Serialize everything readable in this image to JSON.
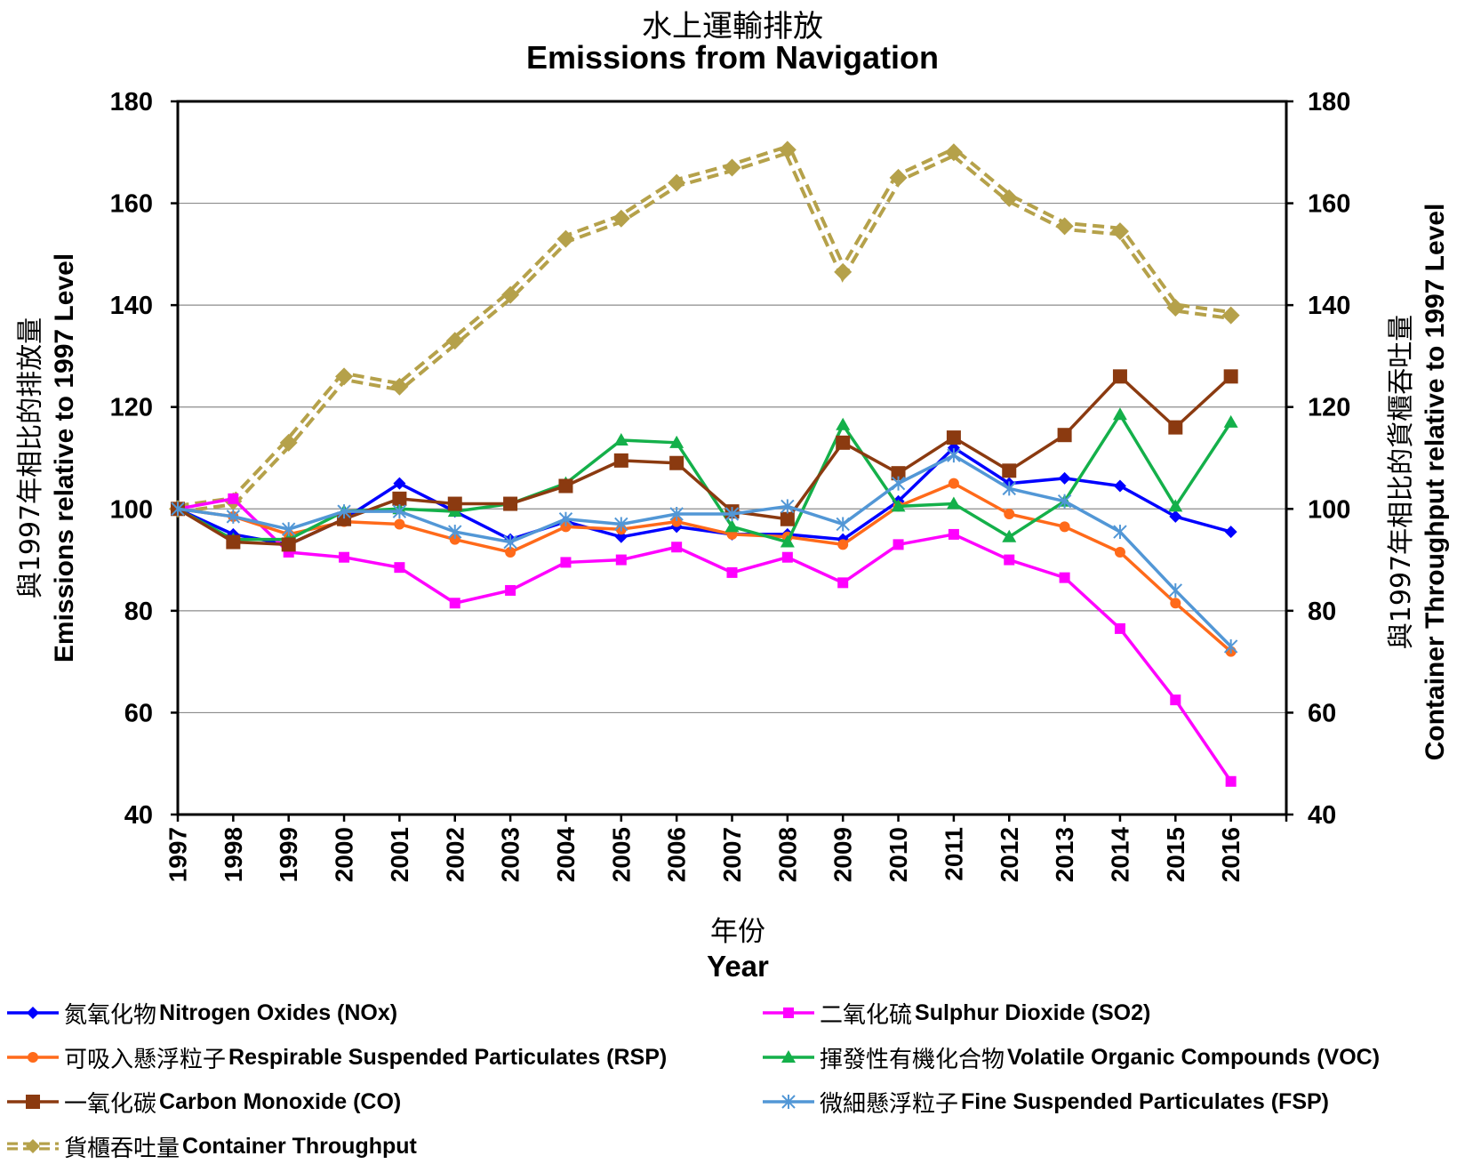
{
  "chart_data": {
    "type": "line",
    "title_zh": "水上運輸排放",
    "title": "Emissions from Navigation",
    "xlabel_zh": "年份",
    "xlabel": "Year",
    "ylabel_left_zh": "與1997年相比的排放量",
    "ylabel_left": "Emissions relative to 1997 Level",
    "ylabel_right_zh": "與1997年相比的貨櫃吞吐量",
    "ylabel_right": "Container Throughput relative to 1997 Level",
    "ylim": [
      40,
      180
    ],
    "yticks": [
      40,
      60,
      80,
      100,
      120,
      140,
      160,
      180
    ],
    "grid": true,
    "legend_position": "bottom",
    "x": [
      "1997",
      "1998",
      "1999",
      "2000",
      "2001",
      "2002",
      "2003",
      "2004",
      "2005",
      "2006",
      "2007",
      "2008",
      "2009",
      "2010",
      "2011",
      "2012",
      "2013",
      "2014",
      "2015",
      "2016"
    ],
    "series": [
      {
        "name_zh": "氮氧化物",
        "name": "Nitrogen Oxides (NOx)",
        "color": "#0000ff",
        "marker": "diamond",
        "dashed": false,
        "values": [
          100,
          95,
          93,
          98,
          105,
          99.5,
          94,
          97.5,
          94.5,
          96.5,
          95,
          95,
          94,
          101.5,
          112,
          105,
          106,
          104.5,
          98.5,
          95.5
        ]
      },
      {
        "name_zh": "二氧化硫",
        "name": "Sulphur Dioxide (SO2)",
        "color": "#ff00ff",
        "marker": "square",
        "dashed": false,
        "values": [
          100,
          102,
          91.5,
          90.5,
          88.5,
          81.5,
          84,
          89.5,
          90,
          92.5,
          87.5,
          90.5,
          85.5,
          93,
          95,
          90,
          86.5,
          76.5,
          62.5,
          46.5
        ]
      },
      {
        "name_zh": "可吸入懸浮粒子",
        "name": "Respirable Suspended Particulates (RSP)",
        "color": "#ff6a1a",
        "marker": "circle",
        "dashed": false,
        "values": [
          100,
          98.5,
          95,
          97.5,
          97,
          94,
          91.5,
          96.5,
          96,
          97.5,
          95,
          94.5,
          93,
          100.5,
          105,
          99,
          96.5,
          91.5,
          81.5,
          72
        ]
      },
      {
        "name_zh": "揮發性有機化合物",
        "name": "Volatile Organic Compounds (VOC)",
        "color": "#14b04a",
        "marker": "triangle",
        "dashed": false,
        "values": [
          100,
          94,
          94,
          99.5,
          100,
          99.5,
          101,
          105,
          113.5,
          113,
          96.5,
          93.5,
          116.5,
          100.5,
          101,
          94.5,
          101.5,
          118.5,
          100.5,
          117
        ]
      },
      {
        "name_zh": "一氧化碳",
        "name": "Carbon Monoxide (CO)",
        "color": "#8b3a10",
        "marker": "bigsquare",
        "dashed": false,
        "values": [
          100,
          93.5,
          93,
          98,
          102,
          101,
          101,
          104.5,
          109.5,
          109,
          99.5,
          98,
          113,
          107,
          114,
          107.5,
          114.5,
          126,
          116,
          126
        ]
      },
      {
        "name_zh": "微細懸浮粒子",
        "name": "Fine Suspended Particulates (FSP)",
        "color": "#5297d6",
        "marker": "star",
        "dashed": false,
        "values": [
          100,
          98.5,
          96,
          99.5,
          99.5,
          95.5,
          93.5,
          98,
          97,
          99,
          99,
          100.5,
          97,
          105,
          110.5,
          104,
          101.5,
          95.5,
          84,
          73
        ]
      },
      {
        "name_zh": "貨櫃吞吐量",
        "name": "Container Throughput",
        "color": "#b5a14a",
        "marker": "diamond",
        "dashed": true,
        "values": [
          100,
          101.5,
          113,
          126,
          124,
          133,
          142,
          153,
          157,
          164,
          167,
          170.5,
          146.5,
          165,
          170,
          161,
          155.5,
          154.5,
          139.5,
          138
        ]
      }
    ]
  }
}
